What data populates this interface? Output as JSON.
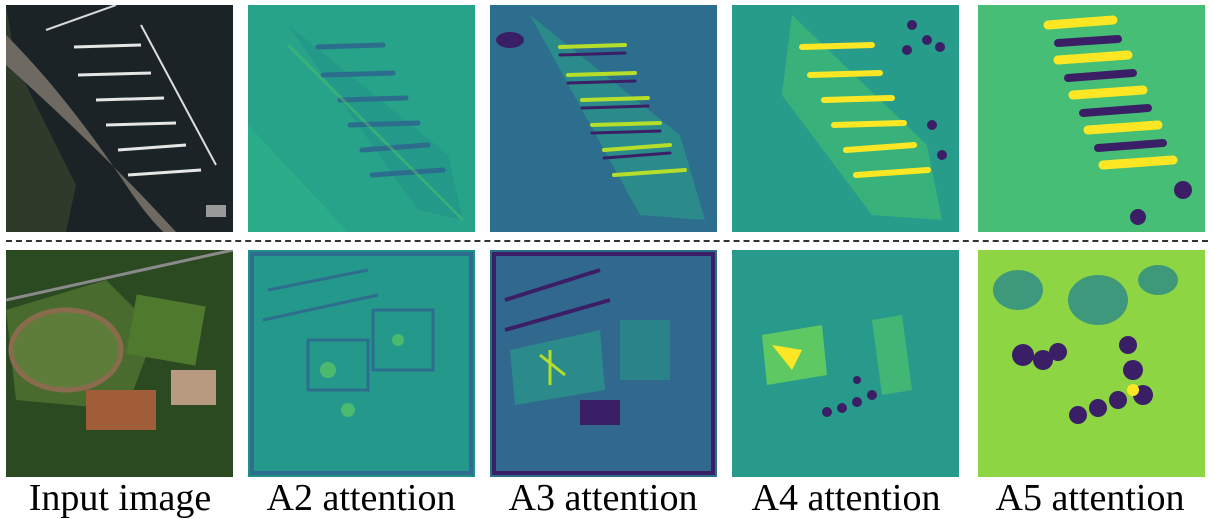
{
  "columns": [
    {
      "id": "input",
      "label": "Input image"
    },
    {
      "id": "a2",
      "label": "A2 attention"
    },
    {
      "id": "a3",
      "label": "A3 attention"
    },
    {
      "id": "a4",
      "label": "A4 attention"
    },
    {
      "id": "a5",
      "label": "A5 attention"
    }
  ],
  "rows": [
    {
      "id": "marina",
      "content": "aerial image of a marina with piers and attention maps"
    },
    {
      "id": "sports",
      "content": "aerial image of sports fields and buildings with attention maps"
    }
  ],
  "colors": {
    "viridis_dark": "#3b1f66",
    "viridis_mid": "#21918c",
    "viridis_light": "#5ec962",
    "viridis_bright": "#fde725",
    "separator": "#333333"
  }
}
